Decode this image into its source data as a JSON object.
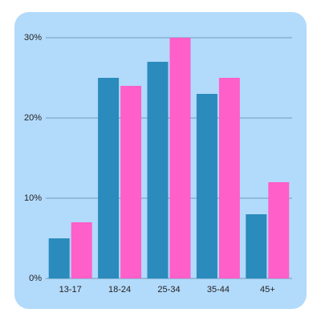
{
  "chart_data": {
    "type": "bar",
    "categories": [
      "13-17",
      "18-24",
      "25-34",
      "35-44",
      "45+"
    ],
    "series": [
      {
        "color": "#2a8bbc",
        "values": [
          5,
          25,
          27,
          23,
          8
        ]
      },
      {
        "color": "#ff5fc9",
        "values": [
          7,
          24,
          30,
          25,
          12
        ]
      }
    ],
    "ylim": [
      0,
      30
    ],
    "yticks": [
      {
        "value": 0,
        "label": "0%"
      },
      {
        "value": 10,
        "label": "10%"
      },
      {
        "value": 20,
        "label": "20%"
      },
      {
        "value": 30,
        "label": "30%"
      }
    ],
    "grid": true
  }
}
